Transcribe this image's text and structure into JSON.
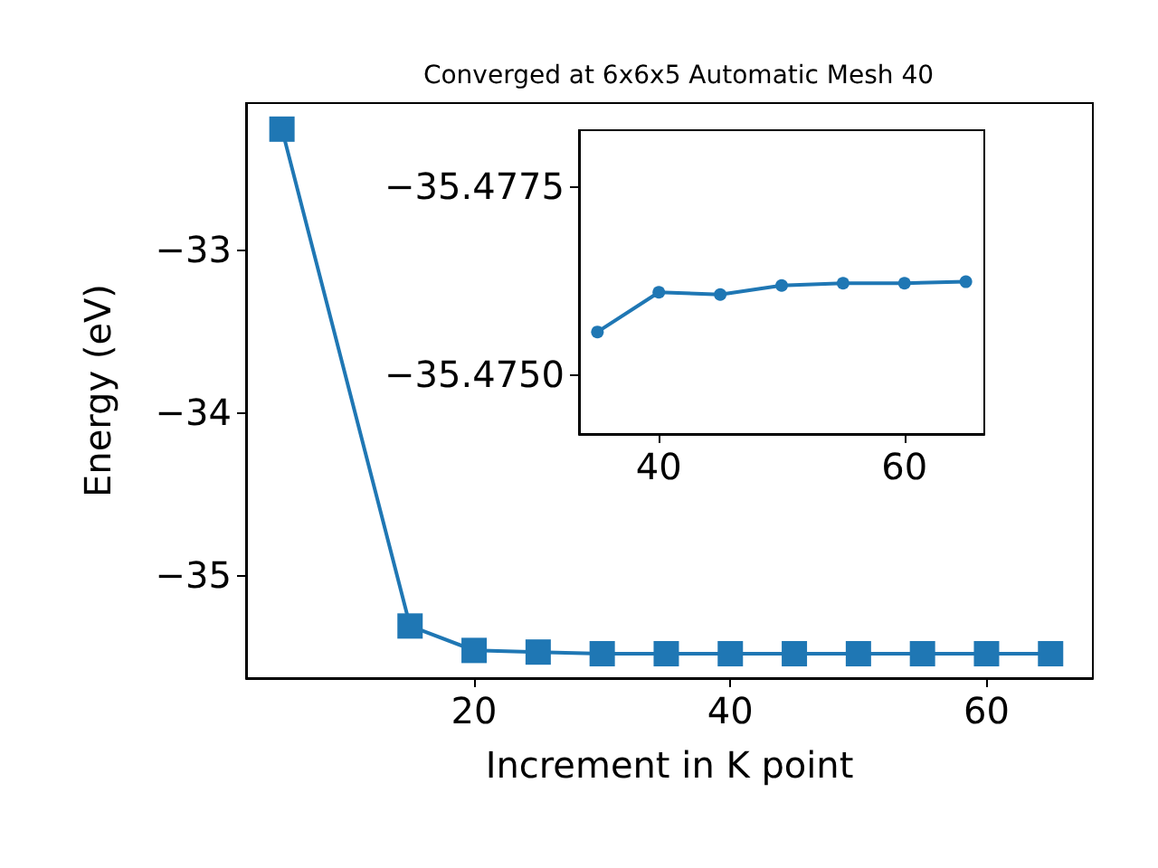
{
  "chart_data": [
    {
      "type": "line",
      "title": "Converged at 6x6x5 Automatic Mesh 40",
      "xlabel": "Increment in K point",
      "ylabel": "Energy (eV)",
      "marker": "square",
      "line_style": "solid",
      "x": [
        5,
        15,
        20,
        25,
        30,
        35,
        40,
        45,
        50,
        55,
        60,
        65
      ],
      "series": [
        {
          "color": "#1f77b4",
          "values": [
            -32.26,
            -35.31,
            -35.46,
            -35.47,
            -35.48,
            -35.48,
            -35.48,
            -35.48,
            -35.48,
            -35.48,
            -35.48,
            -35.48
          ]
        }
      ],
      "xlim": [
        2.2,
        68.3
      ],
      "xticks": [
        20,
        40,
        60
      ],
      "ylim": [
        -35.63,
        -32.1
      ],
      "yticks": [
        {
          "value": -35,
          "label": "−35"
        },
        {
          "value": -34,
          "label": "−34"
        },
        {
          "value": -33,
          "label": "−33"
        }
      ]
    },
    {
      "type": "line",
      "marker": "circle",
      "line_style": "solid",
      "x": [
        35,
        40,
        45,
        50,
        55,
        60,
        65
      ],
      "series": [
        {
          "color": "#1f77b4",
          "values": [
            -35.47556,
            -35.47609,
            -35.47606,
            -35.47618,
            -35.47621,
            -35.47621,
            -35.47623
          ]
        }
      ],
      "xlim": [
        33.5,
        66.5
      ],
      "xticks": [
        40,
        60
      ],
      "ylim": [
        -35.4742,
        -35.47825
      ],
      "yticks": [
        {
          "value": -35.4775,
          "label": "−35.4775"
        },
        {
          "value": -35.475,
          "label": "−35.4750"
        }
      ]
    }
  ]
}
